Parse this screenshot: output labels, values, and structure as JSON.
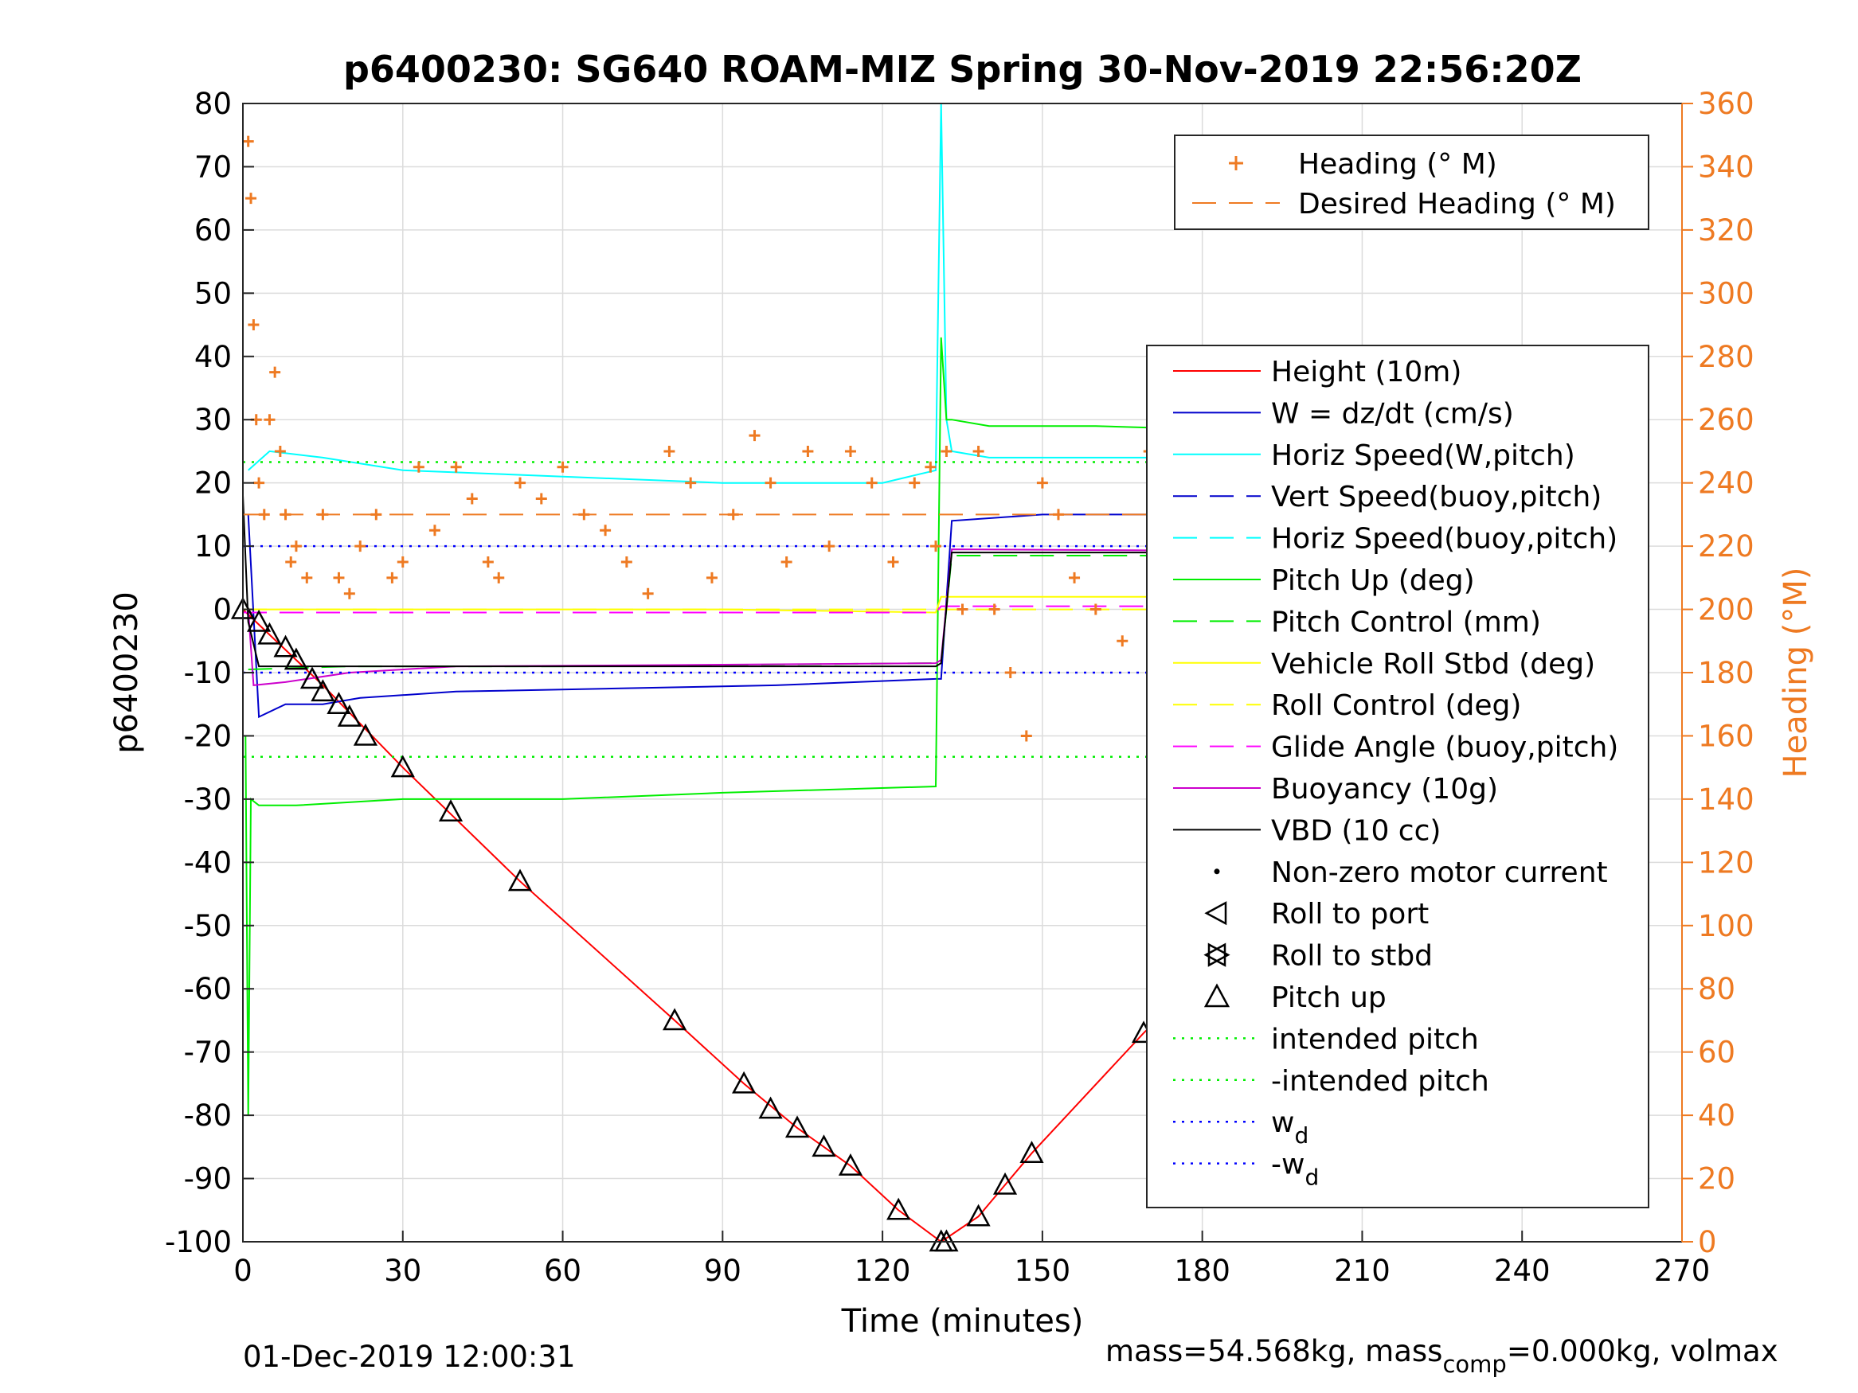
{
  "chart_data": {
    "type": "line",
    "title": "p6400230: SG640 ROAM-MIZ Spring 30-Nov-2019 22:56:20Z",
    "xlabel": "Time (minutes)",
    "ylabel": "p6400230",
    "ylabel_right": "Heading (°M)",
    "xlim": [
      0,
      270
    ],
    "ylim": [
      -100,
      80
    ],
    "ylim_right": [
      0,
      360
    ],
    "x_ticks": [
      0,
      30,
      60,
      90,
      120,
      150,
      180,
      210,
      240,
      270
    ],
    "y_ticks": [
      80,
      70,
      60,
      50,
      40,
      30,
      20,
      10,
      0,
      -10,
      -20,
      -30,
      -40,
      -50,
      -60,
      -70,
      -80,
      -90,
      -100
    ],
    "y_ticks_right": [
      360,
      340,
      320,
      300,
      280,
      260,
      240,
      220,
      200,
      180,
      160,
      140,
      120,
      100,
      80,
      60,
      40,
      20,
      0
    ],
    "grid": true,
    "colors": {
      "height": "#ff0000",
      "w": "#0000cc",
      "horiz_speed": "#00ffff",
      "pitch": "#00ee00",
      "roll": "#ffff00",
      "glide": "#ff00ff",
      "buoyancy": "#cc00cc",
      "vbd": "#000000",
      "heading": "#ee7a22",
      "intended_pitch": "#00ee00",
      "wd": "#0000ff"
    },
    "series": [
      {
        "name": "Height (10m)",
        "style": "line",
        "color": "#ff0000",
        "x": [
          0,
          15,
          30,
          52,
          81,
          94,
          104,
          114,
          123,
          131,
          138,
          148,
          169,
          207,
          230,
          245,
          258
        ],
        "y": [
          0,
          -12,
          -25,
          -43,
          -65,
          -75,
          -82,
          -88,
          -95,
          -100,
          -96,
          -86,
          -67,
          -36,
          -18,
          -8,
          -1
        ]
      },
      {
        "name": "W = dz/dt (cm/s)",
        "style": "line",
        "color": "#0000cc",
        "x": [
          1,
          3,
          8,
          15,
          22,
          40,
          70,
          100,
          130,
          131,
          133,
          150,
          180,
          210,
          240,
          258
        ],
        "y": [
          15,
          -17,
          -15,
          -15,
          -14,
          -13,
          -12.5,
          -12,
          -11,
          -11,
          14,
          15,
          15,
          14,
          12,
          10
        ]
      },
      {
        "name": "Horiz Speed(W,pitch)",
        "style": "line",
        "color": "#00ffff",
        "x": [
          1,
          5,
          15,
          30,
          60,
          90,
          120,
          130,
          131,
          132,
          133,
          140,
          160,
          190,
          230,
          258
        ],
        "y": [
          22,
          25,
          24,
          22,
          21,
          20,
          20,
          22,
          80,
          30,
          25,
          24,
          24,
          24,
          24,
          24
        ]
      },
      {
        "name": "Pitch Up (deg)",
        "style": "line",
        "color": "#00ee00",
        "x": [
          0.5,
          1,
          1.5,
          3,
          10,
          30,
          60,
          90,
          130,
          131,
          132,
          133,
          140,
          160,
          200,
          240,
          258
        ],
        "y": [
          -20,
          -80,
          -30,
          -31,
          -31,
          -30,
          -30,
          -29,
          -28,
          43,
          30,
          30,
          29,
          29,
          28,
          27,
          26
        ]
      },
      {
        "name": "Pitch Control (mm)",
        "style": "dash",
        "color": "#00ee00",
        "x": [
          1,
          20,
          60,
          130,
          131,
          133,
          258
        ],
        "y": [
          -9.5,
          -9,
          -9,
          -8.5,
          -8.5,
          8.5,
          8.5
        ]
      },
      {
        "name": "Vehicle Roll Stbd (deg)",
        "style": "line",
        "color": "#ffff00",
        "x": [
          0,
          30,
          60,
          90,
          130,
          131,
          133,
          180,
          230,
          258
        ],
        "y": [
          0,
          0,
          0,
          0,
          -0.5,
          2,
          2,
          2,
          2,
          2
        ]
      },
      {
        "name": "Roll Control (deg)",
        "style": "dash",
        "color": "#ffff00",
        "x": [
          0,
          258
        ],
        "y": [
          0,
          0
        ]
      },
      {
        "name": "Glide Angle (buoy,pitch)",
        "style": "dash",
        "color": "#ff00ff",
        "x": [
          0,
          130,
          131,
          133,
          258
        ],
        "y": [
          -0.5,
          -0.5,
          0.5,
          0.5,
          0.5
        ]
      },
      {
        "name": "Buoyancy (10g)",
        "style": "line",
        "color": "#cc00cc",
        "x": [
          1,
          2,
          8,
          20,
          40,
          80,
          130,
          131,
          133,
          180,
          230,
          258
        ],
        "y": [
          0,
          -12,
          -11.5,
          -10,
          -9,
          -8.8,
          -8.5,
          -8,
          9.5,
          9.3,
          9,
          8.5
        ]
      },
      {
        "name": "VBD (10 cc)",
        "style": "line",
        "color": "#000000",
        "x": [
          0,
          1,
          3,
          20,
          60,
          130,
          131,
          133,
          180,
          258
        ],
        "y": [
          18,
          -2,
          -9,
          -9,
          -9,
          -9,
          -8.5,
          9,
          9,
          9
        ]
      },
      {
        "name": "intended pitch",
        "style": "dot",
        "color": "#00ee00",
        "x": [
          0,
          258
        ],
        "y": [
          23.3,
          23.3
        ]
      },
      {
        "name": "-intended pitch",
        "style": "dot",
        "color": "#00ee00",
        "x": [
          0,
          258
        ],
        "y": [
          -23.3,
          -23.3
        ]
      },
      {
        "name": "w_d",
        "style": "dot",
        "color": "#0000ff",
        "x": [
          0,
          258
        ],
        "y": [
          10,
          10
        ]
      },
      {
        "name": "-w_d",
        "style": "dot",
        "color": "#0000ff",
        "x": [
          0,
          258
        ],
        "y": [
          -10,
          -10
        ]
      }
    ],
    "heading_series": {
      "name": "Heading (° M)",
      "axis": "right",
      "color": "#ee7a22",
      "x": [
        1,
        1.5,
        2,
        2.5,
        3,
        4,
        5,
        6,
        7,
        8,
        9,
        10,
        12,
        15,
        18,
        20,
        22,
        25,
        28,
        30,
        33,
        36,
        40,
        43,
        46,
        48,
        52,
        56,
        60,
        64,
        68,
        72,
        76,
        80,
        84,
        88,
        92,
        96,
        99,
        102,
        106,
        110,
        114,
        118,
        122,
        126,
        129,
        130,
        132,
        135,
        138,
        141,
        144,
        147,
        150,
        153,
        156,
        160,
        165,
        170,
        175,
        180,
        185,
        190,
        195,
        200,
        205,
        210,
        215,
        220,
        225,
        230,
        235,
        240,
        245,
        250,
        255
      ],
      "y": [
        348,
        330,
        290,
        260,
        240,
        230,
        260,
        275,
        250,
        230,
        215,
        220,
        210,
        230,
        210,
        205,
        220,
        230,
        210,
        215,
        245,
        225,
        245,
        235,
        215,
        210,
        240,
        235,
        245,
        230,
        225,
        215,
        205,
        250,
        240,
        210,
        230,
        255,
        240,
        215,
        250,
        220,
        250,
        240,
        215,
        240,
        245,
        220,
        250,
        200,
        250,
        200,
        180,
        160,
        240,
        230,
        210,
        200,
        190,
        250,
        230,
        245,
        210,
        230,
        240,
        235,
        250,
        240,
        245,
        240,
        230,
        235,
        245,
        215,
        260,
        250,
        240
      ],
      "desired": {
        "name": "Desired Heading (° M)",
        "x": [
          0,
          258
        ],
        "y": [
          230,
          230
        ]
      }
    },
    "markers": {
      "pitch_up": {
        "name": "Pitch up",
        "x": [
          0,
          3,
          5,
          8,
          10,
          13,
          15,
          18,
          20,
          23,
          30,
          39,
          52,
          81,
          94,
          99,
          104,
          109,
          114,
          123,
          131,
          132,
          138,
          143,
          148,
          169,
          207,
          210,
          213,
          217,
          220,
          223,
          226,
          229,
          232,
          241,
          244,
          248,
          251,
          253,
          255,
          258
        ],
        "y": [
          0,
          -2,
          -4,
          -6,
          -8,
          -11,
          -13,
          -15,
          -17,
          -20,
          -25,
          -32,
          -43,
          -65,
          -75,
          -79,
          -82,
          -85,
          -88,
          -95,
          -100,
          -100,
          -96,
          -91,
          -86,
          -67,
          -36,
          -33,
          -30,
          -26,
          -23,
          -21,
          -18,
          -16,
          -13,
          -10,
          -8,
          -6,
          -5,
          -4,
          -3,
          -1
        ]
      },
      "roll_to_port": {
        "name": "Roll to port"
      },
      "roll_to_stbd": {
        "name": "Roll to stbd"
      },
      "motor": {
        "name": "Non-zero motor current"
      }
    },
    "legend": {
      "placement": "right",
      "heading_items": [
        "Heading (° M)",
        "Desired Heading (° M)"
      ],
      "items": [
        "Height (10m)",
        "W = dz/dt (cm/s)",
        "Horiz Speed(W,pitch)",
        "Vert Speed(buoy,pitch)",
        "Horiz Speed(buoy,pitch)",
        "Pitch Up (deg)",
        "Pitch Control (mm)",
        "Vehicle Roll Stbd (deg)",
        "Roll Control (deg)",
        "Glide Angle (buoy,pitch)",
        "Buoyancy (10g)",
        "VBD (10 cc)",
        "Non-zero motor current",
        "Roll to port",
        "Roll to stbd",
        "Pitch up",
        "intended pitch",
        "-intended pitch"
      ],
      "wd_label": "w",
      "wd_sub": "d",
      "neg_wd_label": "-w",
      "neg_wd_sub": "d"
    }
  },
  "footer": {
    "date": "01-Dec-2019 12:00:31",
    "mass_text_1": "mass=54.568kg, mass",
    "mass_sub": "comp",
    "mass_text_2": "=0.000kg, volmax"
  }
}
